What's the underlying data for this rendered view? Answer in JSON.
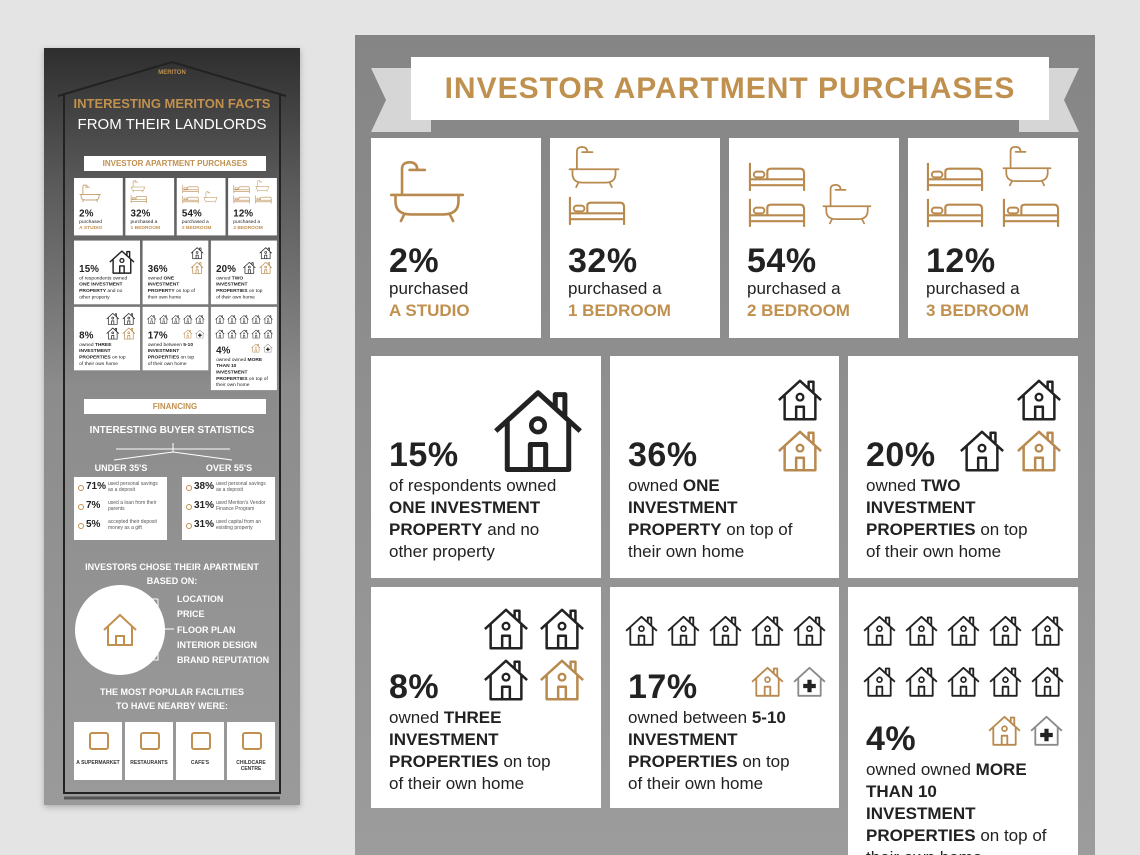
{
  "left_panel": {
    "logo": "MERITON",
    "title_line1": "INTERESTING MERITON FACTS",
    "title_line2": "FROM THEIR LANDLORDS",
    "section1": "INVESTOR APARTMENT PURCHASES",
    "section2": "FINANCING",
    "buyer_stats_title": "INTERESTING BUYER STATISTICS",
    "groups": [
      {
        "title": "UNDER 35'S",
        "stats": [
          {
            "pct": "71%",
            "text": "used personal savings as a deposit"
          },
          {
            "pct": "7%",
            "text": "used a loan from their parents"
          },
          {
            "pct": "5%",
            "text": "accepted their deposit money as a gift"
          }
        ]
      },
      {
        "title": "OVER 55'S",
        "stats": [
          {
            "pct": "38%",
            "text": "used personal savings as a deposit"
          },
          {
            "pct": "31%",
            "text": "used Meriton's Vendor Finance Program"
          },
          {
            "pct": "31%",
            "text": "used capital from an existing property"
          }
        ]
      }
    ],
    "chose_title": [
      "INVESTORS CHOSE THEIR APARTMENT",
      "BASED ON:"
    ],
    "factors": [
      "LOCATION",
      "PRICE",
      "FLOOR PLAN",
      "INTERIOR DESIGN",
      "BRAND REPUTATION"
    ],
    "facilities_title": [
      "THE MOST POPULAR FACILITIES",
      "TO HAVE NEARBY WERE:"
    ],
    "facilities": [
      "A SUPERMARKET",
      "RESTAURANTS",
      "CAFE'S",
      "CHILDCARE CENTRE"
    ]
  },
  "main": {
    "title": "INVESTOR APARTMENT PURCHASES",
    "purchases": [
      {
        "pct": "2%",
        "lead": "purchased",
        "label": "A STUDIO"
      },
      {
        "pct": "32%",
        "lead": "purchased a",
        "label": "1 BEDROOM"
      },
      {
        "pct": "54%",
        "lead": "purchased a",
        "label": "2 BEDROOM"
      },
      {
        "pct": "12%",
        "lead": "purchased a",
        "label": "3 BEDROOM"
      }
    ],
    "ownership": [
      {
        "pct": "15%",
        "lead": "of respondents owned",
        "bold": "ONE INVESTMENT PROPERTY",
        "tail": "and no other property"
      },
      {
        "pct": "36%",
        "lead": "owned",
        "bold": "ONE INVESTMENT PROPERTY",
        "tail": "on top of their own home"
      },
      {
        "pct": "20%",
        "lead": "owned",
        "bold": "TWO INVESTMENT PROPERTIES",
        "tail": "on top of their own home"
      },
      {
        "pct": "8%",
        "lead": "owned",
        "bold": "THREE INVESTMENT PROPERTIES",
        "tail": "on top of their own home"
      },
      {
        "pct": "17%",
        "lead": "owned between",
        "bold": "5-10 INVESTMENT PROPERTIES",
        "tail": "on top of their own home"
      },
      {
        "pct": "4%",
        "lead": "owned owned",
        "bold": "MORE THAN 10 INVESTMENT PROPERTIES",
        "tail": "on top of their own home"
      }
    ]
  }
}
